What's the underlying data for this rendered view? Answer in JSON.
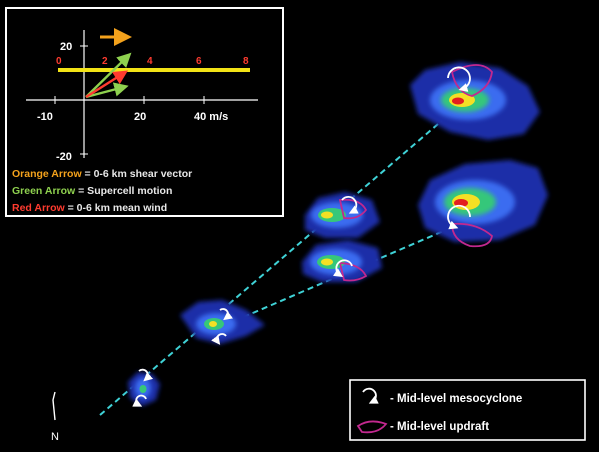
{
  "hodograph": {
    "y_ticks": [
      "20",
      "-20"
    ],
    "x_ticks": [
      "-10",
      "20",
      "40 m/s"
    ],
    "height_labels": [
      "0",
      "2",
      "4",
      "6",
      "8"
    ]
  },
  "inset_legend": [
    {
      "key": "Orange Arrow",
      "desc": " = 0-6 km shear vector",
      "color": "#f4a21c"
    },
    {
      "key": "Green Arrow",
      "desc": " = Supercell motion",
      "color": "#8fd14f"
    },
    {
      "key": "Red Arrow",
      "desc": " = 0-6 km mean wind",
      "color": "#ff3b2f"
    }
  ],
  "map_legend": [
    {
      "icon": "mesocyclone-icon",
      "text": "- Mid-level mesocyclone"
    },
    {
      "icon": "updraft-icon",
      "text": "- Mid-level updraft"
    }
  ],
  "north_label": "N",
  "colors": {
    "background": "#000000",
    "track": "#3fd2d6",
    "updraft": "#c2288f",
    "hodo_line": "#f2e316",
    "storm_outer": "#1d2fa8"
  }
}
